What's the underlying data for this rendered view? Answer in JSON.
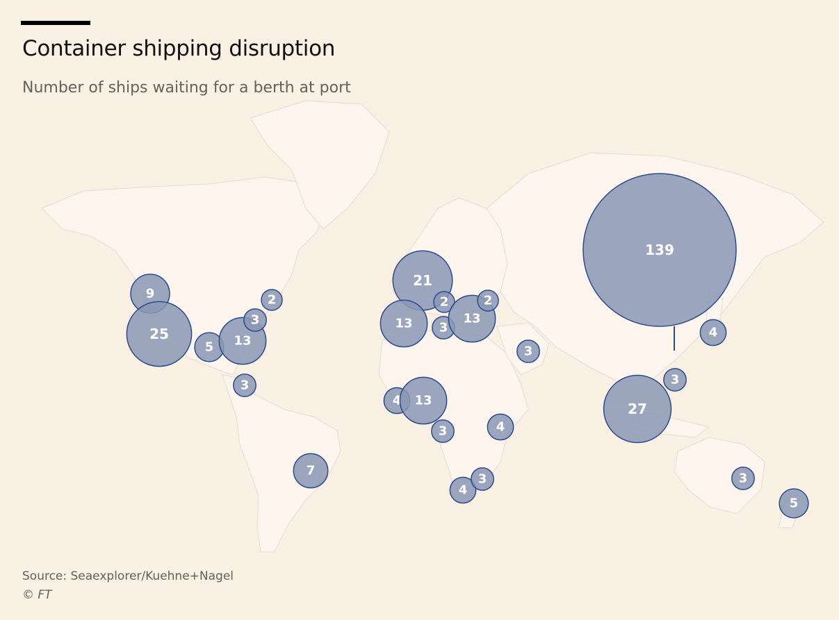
{
  "title": "Container shipping disruption",
  "subtitle": "Number of ships waiting for a berth at port",
  "source": "Source: Seaexplorer/Kuehne+Nagel",
  "copyright": "© FT",
  "colors": {
    "background": "#fbf0e4",
    "land": "#fdf5ee",
    "bubble_fill": "#8998b5",
    "bubble_stroke": "#2b4a8b"
  },
  "chart_data": {
    "type": "proportional-symbol-map",
    "metric": "Number of ships waiting for a berth at port",
    "markers": [
      {
        "value": 9,
        "lon": -123,
        "lat": 48
      },
      {
        "value": 25,
        "lon": -118,
        "lat": 34
      },
      {
        "value": 5,
        "lon": -97,
        "lat": 28
      },
      {
        "value": 13,
        "lon": -90,
        "lat": 30
      },
      {
        "value": 3,
        "lon": -76,
        "lat": 37
      },
      {
        "value": 2,
        "lon": -70,
        "lat": 43
      },
      {
        "value": 3,
        "lon": -80,
        "lat": 9
      },
      {
        "value": 7,
        "lon": -48,
        "lat": -25
      },
      {
        "value": 21,
        "lon": 4,
        "lat": 52
      },
      {
        "value": 2,
        "lon": 9,
        "lat": 44
      },
      {
        "value": 13,
        "lon": -6,
        "lat": 37
      },
      {
        "value": 3,
        "lon": 9,
        "lat": 37
      },
      {
        "value": 13,
        "lon": 24,
        "lat": 38
      },
      {
        "value": 2,
        "lon": 30,
        "lat": 45
      },
      {
        "value": 3,
        "lon": 55,
        "lat": 25
      },
      {
        "value": 4,
        "lon": -5,
        "lat": 6
      },
      {
        "value": 13,
        "lon": 3,
        "lat": 6
      },
      {
        "value": 3,
        "lon": 13,
        "lat": -8
      },
      {
        "value": 4,
        "lon": 40,
        "lat": -6
      },
      {
        "value": 4,
        "lon": 22,
        "lat": -34
      },
      {
        "value": 3,
        "lon": 31,
        "lat": -30
      },
      {
        "value": 139,
        "lon": 118,
        "lat": 32
      },
      {
        "value": 4,
        "lon": 136,
        "lat": 35
      },
      {
        "value": 3,
        "lon": 121,
        "lat": 15
      },
      {
        "value": 27,
        "lon": 104,
        "lat": 2
      },
      {
        "value": 3,
        "lon": 151,
        "lat": -34
      },
      {
        "value": 5,
        "lon": 175,
        "lat": -37
      }
    ]
  }
}
